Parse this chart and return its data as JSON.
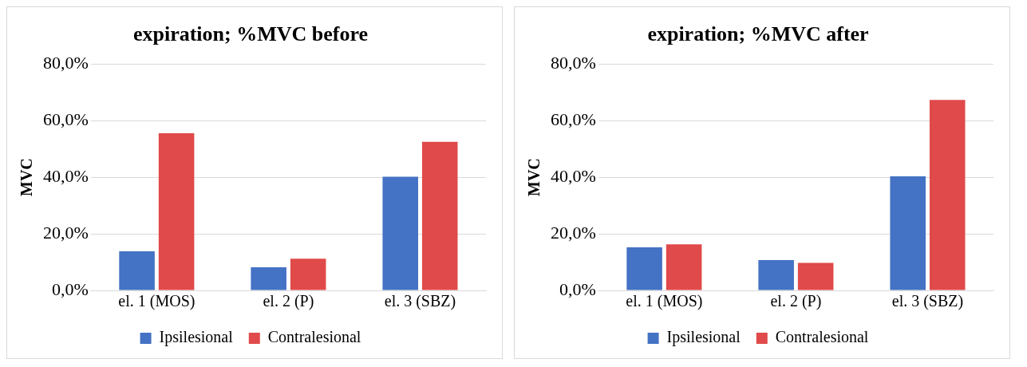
{
  "chart_data": [
    {
      "type": "bar",
      "title": "expiration; %MVC before",
      "ylabel": "MVC",
      "categories": [
        "el. 1 (MOS)",
        "el. 2 (P)",
        "el. 3 (SBZ)"
      ],
      "series": [
        {
          "name": "Ipsilesional",
          "color": "#4472c4",
          "values": [
            13.8,
            8.2,
            40.2
          ]
        },
        {
          "name": "Contralesional",
          "color": "#e04a4a",
          "values": [
            55.5,
            11.2,
            52.5
          ]
        }
      ],
      "ylim": [
        0,
        80
      ],
      "yticks": [
        {
          "value": 0,
          "label": "0,0%"
        },
        {
          "value": 20,
          "label": "20,0%"
        },
        {
          "value": 40,
          "label": "40,0%"
        },
        {
          "value": 60,
          "label": "60,0%"
        },
        {
          "value": 80,
          "label": "80,0%"
        }
      ],
      "grid": "y",
      "legend": "bottom"
    },
    {
      "type": "bar",
      "title": "expiration; %MVC after",
      "ylabel": "MVC",
      "categories": [
        "el. 1 (MOS)",
        "el. 2 (P)",
        "el. 3 (SBZ)"
      ],
      "series": [
        {
          "name": "Ipsilesional",
          "color": "#4472c4",
          "values": [
            15.2,
            10.7,
            40.3
          ]
        },
        {
          "name": "Contralesional",
          "color": "#e04a4a",
          "values": [
            16.3,
            9.7,
            67.3
          ]
        }
      ],
      "ylim": [
        0,
        80
      ],
      "yticks": [
        {
          "value": 0,
          "label": "0,0%"
        },
        {
          "value": 20,
          "label": "20,0%"
        },
        {
          "value": 40,
          "label": "40,0%"
        },
        {
          "value": 60,
          "label": "60,0%"
        },
        {
          "value": 80,
          "label": "80,0%"
        }
      ],
      "grid": "y",
      "legend": "bottom"
    }
  ]
}
